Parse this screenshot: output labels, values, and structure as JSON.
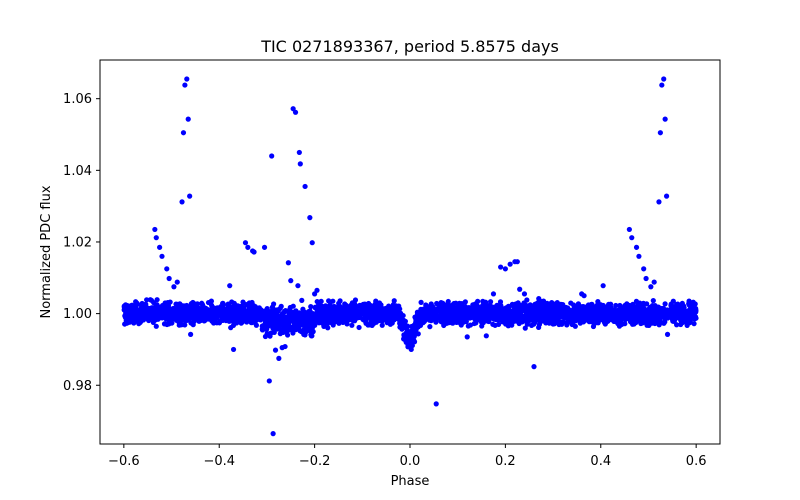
{
  "chart_data": {
    "type": "scatter",
    "title": "TIC 0271893367, period 5.8575 days",
    "xlabel": "Phase",
    "ylabel": "Normalized PDC flux",
    "xlim": [
      -0.65,
      0.65
    ],
    "ylim": [
      0.9636,
      1.0708
    ],
    "xticks": [
      -0.6,
      -0.4,
      -0.2,
      0.0,
      0.2,
      0.4,
      0.6
    ],
    "xtick_labels": [
      "−0.6",
      "−0.4",
      "−0.2",
      "0.0",
      "0.2",
      "0.4",
      "0.6"
    ],
    "yticks": [
      0.98,
      1.0,
      1.02,
      1.04,
      1.06
    ],
    "ytick_labels": [
      "0.98",
      "1.00",
      "1.02",
      "1.04",
      "1.06"
    ],
    "grid": false,
    "marker_color": "#0000ff",
    "series": [
      {
        "name": "flux",
        "points": [
          [
            -0.535,
            1.0235
          ],
          [
            -0.532,
            1.0212
          ],
          [
            -0.525,
            1.0185
          ],
          [
            -0.52,
            1.016
          ],
          [
            -0.51,
            1.0125
          ],
          [
            -0.505,
            1.0098
          ],
          [
            -0.495,
            1.0075
          ],
          [
            -0.488,
            1.0088
          ],
          [
            -0.478,
            1.0312
          ],
          [
            -0.475,
            1.0505
          ],
          [
            -0.472,
            1.0638
          ],
          [
            -0.468,
            1.0655
          ],
          [
            -0.465,
            1.0543
          ],
          [
            -0.462,
            1.0328
          ],
          [
            -0.46,
            0.9942
          ],
          [
            -0.378,
            1.0078
          ],
          [
            -0.37,
            0.99
          ],
          [
            -0.345,
            1.0198
          ],
          [
            -0.34,
            1.0185
          ],
          [
            -0.33,
            1.0175
          ],
          [
            -0.327,
            1.0172
          ],
          [
            -0.305,
            1.0185
          ],
          [
            -0.295,
            0.9812
          ],
          [
            -0.29,
            1.044
          ],
          [
            -0.287,
            0.9665
          ],
          [
            -0.282,
            0.9898
          ],
          [
            -0.275,
            0.9875
          ],
          [
            -0.268,
            0.9905
          ],
          [
            -0.262,
            0.9908
          ],
          [
            -0.255,
            1.0142
          ],
          [
            -0.25,
            1.0092
          ],
          [
            -0.245,
            1.0572
          ],
          [
            -0.24,
            1.0562
          ],
          [
            -0.235,
            1.0078
          ],
          [
            -0.232,
            1.045
          ],
          [
            -0.23,
            1.0418
          ],
          [
            -0.22,
            1.0355
          ],
          [
            -0.21,
            1.0268
          ],
          [
            -0.205,
            1.0198
          ],
          [
            -0.2,
            1.0055
          ],
          [
            -0.195,
            1.0065
          ],
          [
            -0.012,
            0.9935
          ],
          [
            -0.008,
            0.992
          ],
          [
            -0.004,
            0.9912
          ],
          [
            0.0,
            0.9908
          ],
          [
            0.004,
            0.9912
          ],
          [
            0.008,
            0.9925
          ],
          [
            0.012,
            0.9945
          ],
          [
            0.055,
            0.9748
          ],
          [
            0.12,
            0.9935
          ],
          [
            0.16,
            0.9938
          ],
          [
            0.175,
            1.0055
          ],
          [
            0.19,
            1.013
          ],
          [
            0.2,
            1.0125
          ],
          [
            0.21,
            1.0138
          ],
          [
            0.22,
            1.0145
          ],
          [
            0.225,
            1.0145
          ],
          [
            0.23,
            1.0068
          ],
          [
            0.24,
            1.0055
          ],
          [
            0.245,
            1.0038
          ],
          [
            0.26,
            0.9852
          ],
          [
            0.27,
            1.0042
          ],
          [
            0.28,
            1.0035
          ],
          [
            0.46,
            1.0235
          ],
          [
            0.465,
            1.0212
          ],
          [
            0.475,
            1.0185
          ],
          [
            0.48,
            1.016
          ],
          [
            0.49,
            1.0125
          ],
          [
            0.495,
            1.0098
          ],
          [
            0.505,
            1.0075
          ],
          [
            0.512,
            1.0088
          ],
          [
            0.522,
            1.0312
          ],
          [
            0.525,
            1.0505
          ],
          [
            0.528,
            1.0638
          ],
          [
            0.532,
            1.0655
          ],
          [
            0.535,
            1.0543
          ],
          [
            0.538,
            1.0328
          ],
          [
            0.54,
            0.9942
          ],
          [
            0.405,
            1.0078
          ],
          [
            0.36,
            1.0055
          ],
          [
            0.365,
            1.005
          ]
        ],
        "baseline_band": {
          "x_range": [
            -0.6,
            0.6
          ],
          "center": 1.0,
          "spread": 0.0018,
          "count": 3200
        }
      }
    ]
  }
}
